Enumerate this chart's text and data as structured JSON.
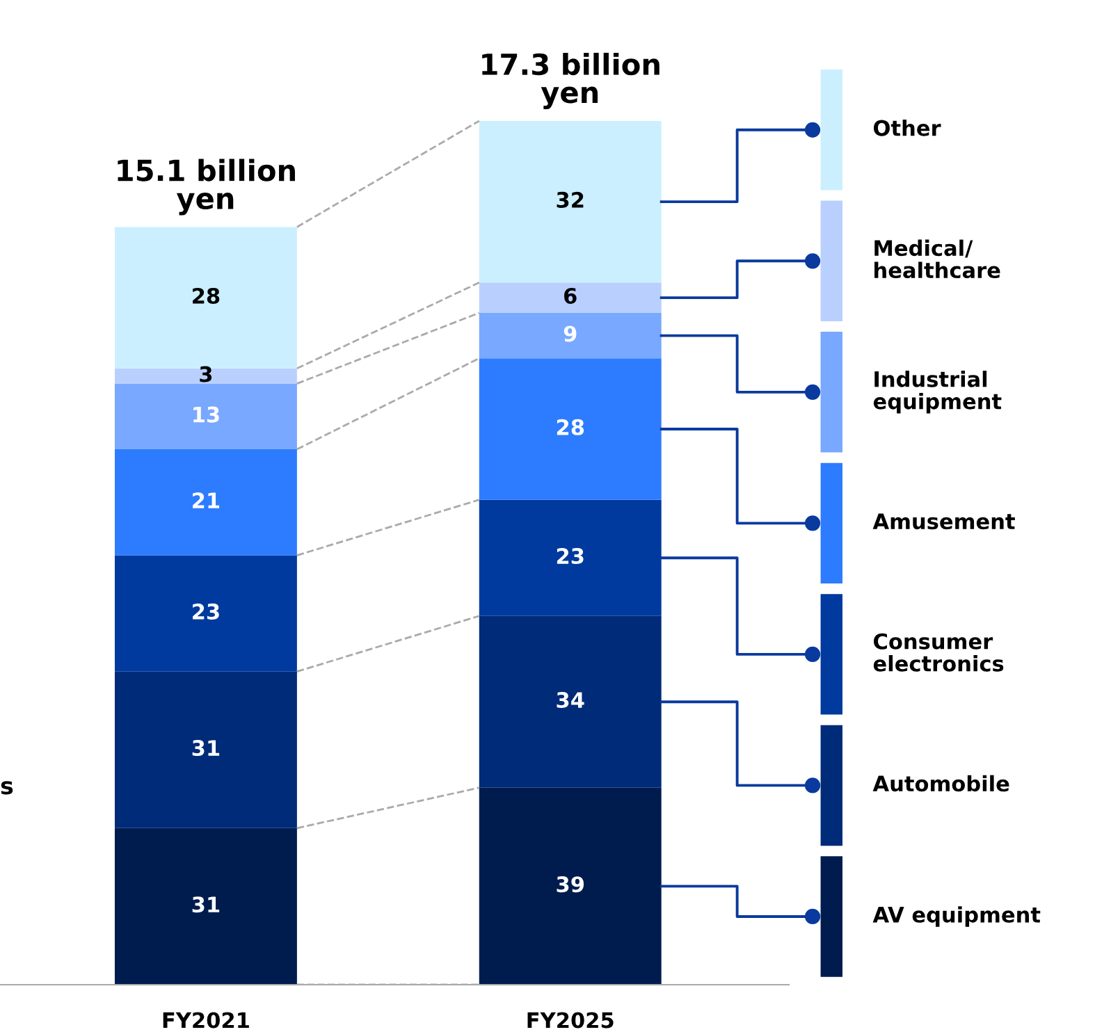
{
  "chart_data": {
    "type": "bar",
    "stacked": true,
    "data_labels": true,
    "legend": "right",
    "categories": [
      "FY2021",
      "FY2025"
    ],
    "series": [
      {
        "name": "AV equipment",
        "color": "#001c4e",
        "values": [
          31,
          39
        ]
      },
      {
        "name": "Automobile",
        "color": "#002b78",
        "values": [
          31,
          34
        ]
      },
      {
        "name": "Consumer\nelectronics",
        "color": "#003a9e",
        "values": [
          23,
          23
        ]
      },
      {
        "name": "Amusement",
        "color": "#2d7cff",
        "values": [
          21,
          28
        ]
      },
      {
        "name": "Industrial\nequipment",
        "color": "#78a8ff",
        "values": [
          13,
          9
        ]
      },
      {
        "name": "Medical/\nhealthcare",
        "color": "#b9d0ff",
        "values": [
          3,
          6
        ]
      },
      {
        "name": "Other",
        "color": "#cbefff",
        "values": [
          28,
          32
        ]
      }
    ],
    "annotations": [
      {
        "text": "15.1 billion\nyen",
        "x": "FY2021",
        "y": 150
      },
      {
        "text": "17.3 billion\nyen",
        "x": "FY2025",
        "y": 171
      },
      "s"
    ]
  }
}
